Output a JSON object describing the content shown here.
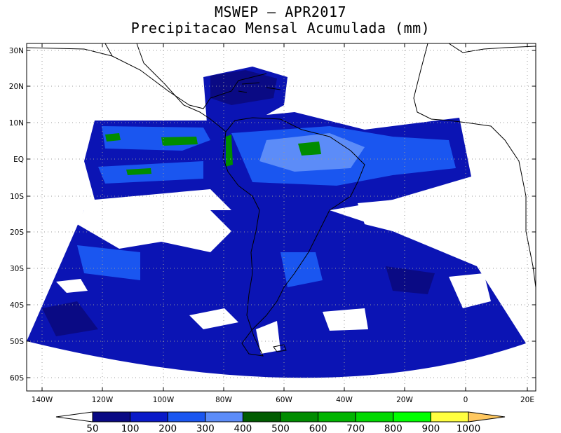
{
  "title": {
    "line1": "MSWEP – APR2017",
    "line2": "Precipitacao Mensal Acumulada (mm)"
  },
  "map": {
    "projection": "polar-stereographic-like",
    "lat_ticks": [
      "30N",
      "20N",
      "10N",
      "EQ",
      "10S",
      "20S",
      "30S",
      "40S",
      "50S",
      "60S"
    ],
    "lon_ticks": [
      "140W",
      "120W",
      "100W",
      "80W",
      "60W",
      "40W",
      "20W",
      "0",
      "20E"
    ],
    "grid": true
  },
  "colorbar": {
    "labels": [
      "50",
      "100",
      "200",
      "300",
      "400",
      "500",
      "600",
      "700",
      "800",
      "900",
      "1000"
    ],
    "colors": [
      "#ffffff",
      "#0a0a84",
      "#0a1ac8",
      "#1a56f0",
      "#5c8cf8",
      "#005c00",
      "#008c00",
      "#00b400",
      "#00d800",
      "#00ff00",
      "#ffff40",
      "#ffc860"
    ]
  }
}
